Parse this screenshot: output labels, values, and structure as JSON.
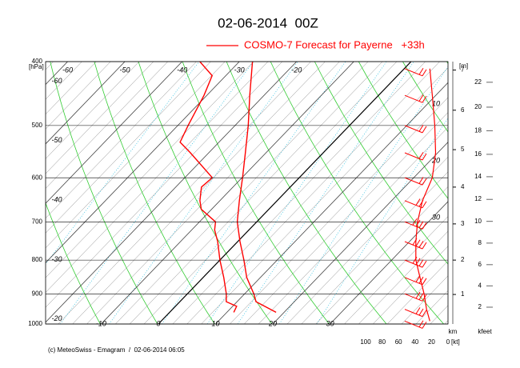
{
  "chart_data": {
    "type": "emagram",
    "title": "02-06-2014  00Z",
    "legend": "COSMO-7 Forecast for Payerne   +33h",
    "footer": "(c) MeteoSwiss - Emagram  /  02-06-2014 06:05",
    "color": "#ff0000",
    "y_label": "[hPa]",
    "ylim": [
      400,
      1000
    ],
    "yticks": [
      400,
      500,
      600,
      700,
      800,
      900,
      1000
    ],
    "xlim": [
      -19.7,
      50.6
    ],
    "xticks": [
      -10,
      0,
      10,
      20,
      30
    ],
    "top_isotherm_labels": [
      -60,
      -50,
      -40,
      -30,
      -20
    ],
    "left_isotherm_labels": [
      -60,
      -50,
      -40,
      -30,
      -20
    ],
    "right_labels": [
      10,
      20,
      30
    ],
    "temperature": {
      "pressures": [
        960,
        925,
        900,
        850,
        800,
        750,
        700,
        650,
        600,
        550,
        500,
        450,
        400
      ],
      "values": [
        18.6,
        13.3,
        11.6,
        7.6,
        4.2,
        0.4,
        -3.4,
        -6.6,
        -9.9,
        -13.6,
        -17.7,
        -22.5,
        -27.7
      ]
    },
    "dewpoint": {
      "pressures": [
        960,
        940,
        925,
        900,
        850,
        800,
        750,
        720,
        700,
        670,
        650,
        620,
        600,
        550,
        530,
        500,
        450,
        420,
        400
      ],
      "values": [
        11.2,
        10.7,
        8.1,
        6.8,
        3.6,
        0,
        -3.5,
        -6,
        -7.2,
        -11.8,
        -13.5,
        -15.5,
        -15.2,
        -23.2,
        -26.8,
        -28.2,
        -30.5,
        -32.4,
        -36.9
      ]
    },
    "wind": {
      "unit": "[kt]",
      "xlim": [
        0,
        100
      ],
      "xticks": [
        100,
        80,
        60,
        40,
        20,
        0
      ],
      "pressures": [
        410,
        450,
        500,
        550,
        600,
        650,
        700,
        750,
        800,
        850,
        900,
        950,
        990
      ],
      "speeds": [
        22,
        19,
        16,
        15,
        19,
        31,
        37,
        39,
        39,
        34,
        29,
        26,
        22
      ]
    },
    "height_km": {
      "unit": "[m]",
      "label": "km",
      "ticks": [
        1,
        2,
        3,
        4,
        5,
        6,
        7
      ],
      "pressures": [
        902,
        800,
        705,
        620,
        544,
        474,
        412
      ]
    },
    "height_kfeet": {
      "label": "kfeet",
      "ticks": [
        2,
        4,
        6,
        8,
        10,
        12,
        14,
        16,
        18,
        20,
        22
      ],
      "pressures": [
        943,
        875,
        813,
        754,
        699,
        647,
        598,
        553,
        509,
        469,
        430
      ]
    }
  }
}
